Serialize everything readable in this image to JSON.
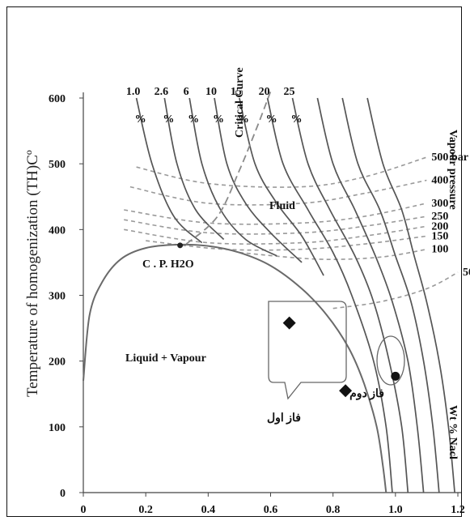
{
  "chart_data": {
    "type": "line",
    "title": "",
    "xlabel": "",
    "ylabel": "Temperature of homogenization (TH)Cº",
    "xlim": [
      0,
      1.2
    ],
    "ylim": [
      0,
      600
    ],
    "x_ticks": [
      "0",
      "0.2",
      "0.4",
      "0.6",
      "0.8",
      "1.0",
      "1.2"
    ],
    "y_ticks": [
      "0",
      "100",
      "200",
      "300",
      "400",
      "500",
      "600"
    ],
    "salinity_series": [
      {
        "top_label": "1.0",
        "unit": "%",
        "points": [
          [
            0.17,
            600
          ],
          [
            0.22,
            500
          ],
          [
            0.29,
            420
          ],
          [
            0.38,
            380
          ]
        ]
      },
      {
        "top_label": "2.6",
        "unit": "%",
        "points": [
          [
            0.26,
            600
          ],
          [
            0.3,
            500
          ],
          [
            0.36,
            430
          ],
          [
            0.45,
            385
          ]
        ]
      },
      {
        "top_label": "6",
        "unit": "%",
        "points": [
          [
            0.34,
            600
          ],
          [
            0.38,
            500
          ],
          [
            0.44,
            430
          ],
          [
            0.52,
            385
          ],
          [
            0.62,
            360
          ]
        ]
      },
      {
        "top_label": "10",
        "unit": "%",
        "points": [
          [
            0.42,
            600
          ],
          [
            0.46,
            500
          ],
          [
            0.52,
            440
          ],
          [
            0.6,
            395
          ],
          [
            0.7,
            350
          ]
        ]
      },
      {
        "top_label": "15",
        "unit": "%",
        "points": [
          [
            0.5,
            600
          ],
          [
            0.55,
            500
          ],
          [
            0.62,
            440
          ],
          [
            0.7,
            390
          ],
          [
            0.77,
            330
          ]
        ]
      },
      {
        "top_label": "20",
        "unit": "%",
        "points": [
          [
            0.59,
            600
          ],
          [
            0.64,
            500
          ],
          [
            0.72,
            430
          ],
          [
            0.8,
            365
          ],
          [
            0.86,
            300
          ],
          [
            0.93,
            200
          ],
          [
            0.97,
            100
          ],
          [
            0.99,
            0
          ]
        ]
      },
      {
        "top_label": "25",
        "unit": "%",
        "points": [
          [
            0.67,
            600
          ],
          [
            0.72,
            500
          ],
          [
            0.79,
            430
          ],
          [
            0.87,
            360
          ],
          [
            0.93,
            290
          ],
          [
            0.98,
            200
          ],
          [
            1.02,
            100
          ],
          [
            1.04,
            0
          ]
        ]
      },
      {
        "top_label": "",
        "unit": "",
        "points": [
          [
            0.75,
            600
          ],
          [
            0.8,
            500
          ],
          [
            0.87,
            430
          ],
          [
            0.94,
            355
          ],
          [
            0.99,
            290
          ],
          [
            1.04,
            200
          ],
          [
            1.07,
            100
          ],
          [
            1.09,
            0
          ]
        ]
      },
      {
        "top_label": "",
        "unit": "",
        "points": [
          [
            0.83,
            600
          ],
          [
            0.88,
            500
          ],
          [
            0.95,
            430
          ],
          [
            1.0,
            360
          ],
          [
            1.05,
            290
          ],
          [
            1.09,
            200
          ],
          [
            1.12,
            100
          ],
          [
            1.14,
            0
          ]
        ]
      },
      {
        "top_label": "",
        "unit": "",
        "points": [
          [
            0.91,
            600
          ],
          [
            0.96,
            500
          ],
          [
            1.02,
            430
          ],
          [
            1.06,
            360
          ],
          [
            1.1,
            290
          ],
          [
            1.14,
            200
          ],
          [
            1.17,
            100
          ],
          [
            1.19,
            0
          ]
        ]
      }
    ],
    "boundary_curve_label": "Liquid  + Vapour",
    "boundary_curve": [
      [
        0.0,
        170
      ],
      [
        0.02,
        270
      ],
      [
        0.06,
        320
      ],
      [
        0.12,
        355
      ],
      [
        0.2,
        372
      ],
      [
        0.3,
        377
      ],
      [
        0.4,
        375
      ],
      [
        0.5,
        365
      ],
      [
        0.6,
        345
      ],
      [
        0.7,
        310
      ],
      [
        0.78,
        270
      ],
      [
        0.85,
        220
      ],
      [
        0.9,
        165
      ],
      [
        0.94,
        100
      ],
      [
        0.96,
        40
      ],
      [
        0.97,
        0
      ]
    ],
    "critical_curve_label": "Critical Curve",
    "critical_curve": [
      [
        0.33,
        378
      ],
      [
        0.43,
        420
      ],
      [
        0.5,
        490
      ],
      [
        0.56,
        560
      ],
      [
        0.6,
        610
      ]
    ],
    "isobar_label": "Vapour pressure",
    "isobars": [
      {
        "label": "500 bar",
        "points": [
          [
            0.17,
            495
          ],
          [
            0.4,
            470
          ],
          [
            0.7,
            465
          ],
          [
            0.9,
            480
          ],
          [
            1.1,
            510
          ]
        ]
      },
      {
        "label": "400",
        "points": [
          [
            0.15,
            465
          ],
          [
            0.4,
            440
          ],
          [
            0.7,
            440
          ],
          [
            0.9,
            455
          ],
          [
            1.1,
            475
          ]
        ]
      },
      {
        "label": "300",
        "points": [
          [
            0.13,
            430
          ],
          [
            0.4,
            410
          ],
          [
            0.7,
            410
          ],
          [
            0.9,
            420
          ],
          [
            1.1,
            440
          ]
        ]
      },
      {
        "label": "250",
        "points": [
          [
            0.13,
            415
          ],
          [
            0.4,
            395
          ],
          [
            0.7,
            395
          ],
          [
            0.9,
            405
          ],
          [
            1.1,
            420
          ]
        ]
      },
      {
        "label": "200",
        "points": [
          [
            0.13,
            400
          ],
          [
            0.4,
            380
          ],
          [
            0.7,
            380
          ],
          [
            0.9,
            390
          ],
          [
            1.1,
            405
          ]
        ]
      },
      {
        "label": "150",
        "points": [
          [
            0.2,
            383
          ],
          [
            0.45,
            370
          ],
          [
            0.7,
            370
          ],
          [
            0.9,
            378
          ],
          [
            1.1,
            390
          ]
        ]
      },
      {
        "label": "100",
        "points": [
          [
            0.5,
            365
          ],
          [
            0.75,
            355
          ],
          [
            0.95,
            358
          ],
          [
            1.1,
            370
          ]
        ]
      },
      {
        "label": "50",
        "points": [
          [
            0.8,
            280
          ],
          [
            0.95,
            290
          ],
          [
            1.1,
            310
          ],
          [
            1.2,
            335
          ]
        ]
      }
    ],
    "point_label": "C . P.  H2O",
    "critical_point": [
      0.31,
      376
    ],
    "region_label_fluid": "Fluid",
    "wt_label": "Wt % Nacl",
    "phase1_label": "فاز اول",
    "phase2_label": "فاز دوم",
    "phase1_points": [
      [
        0.66,
        258
      ],
      [
        0.84,
        155
      ]
    ],
    "phase2_points": [
      [
        1.0,
        177
      ]
    ]
  }
}
